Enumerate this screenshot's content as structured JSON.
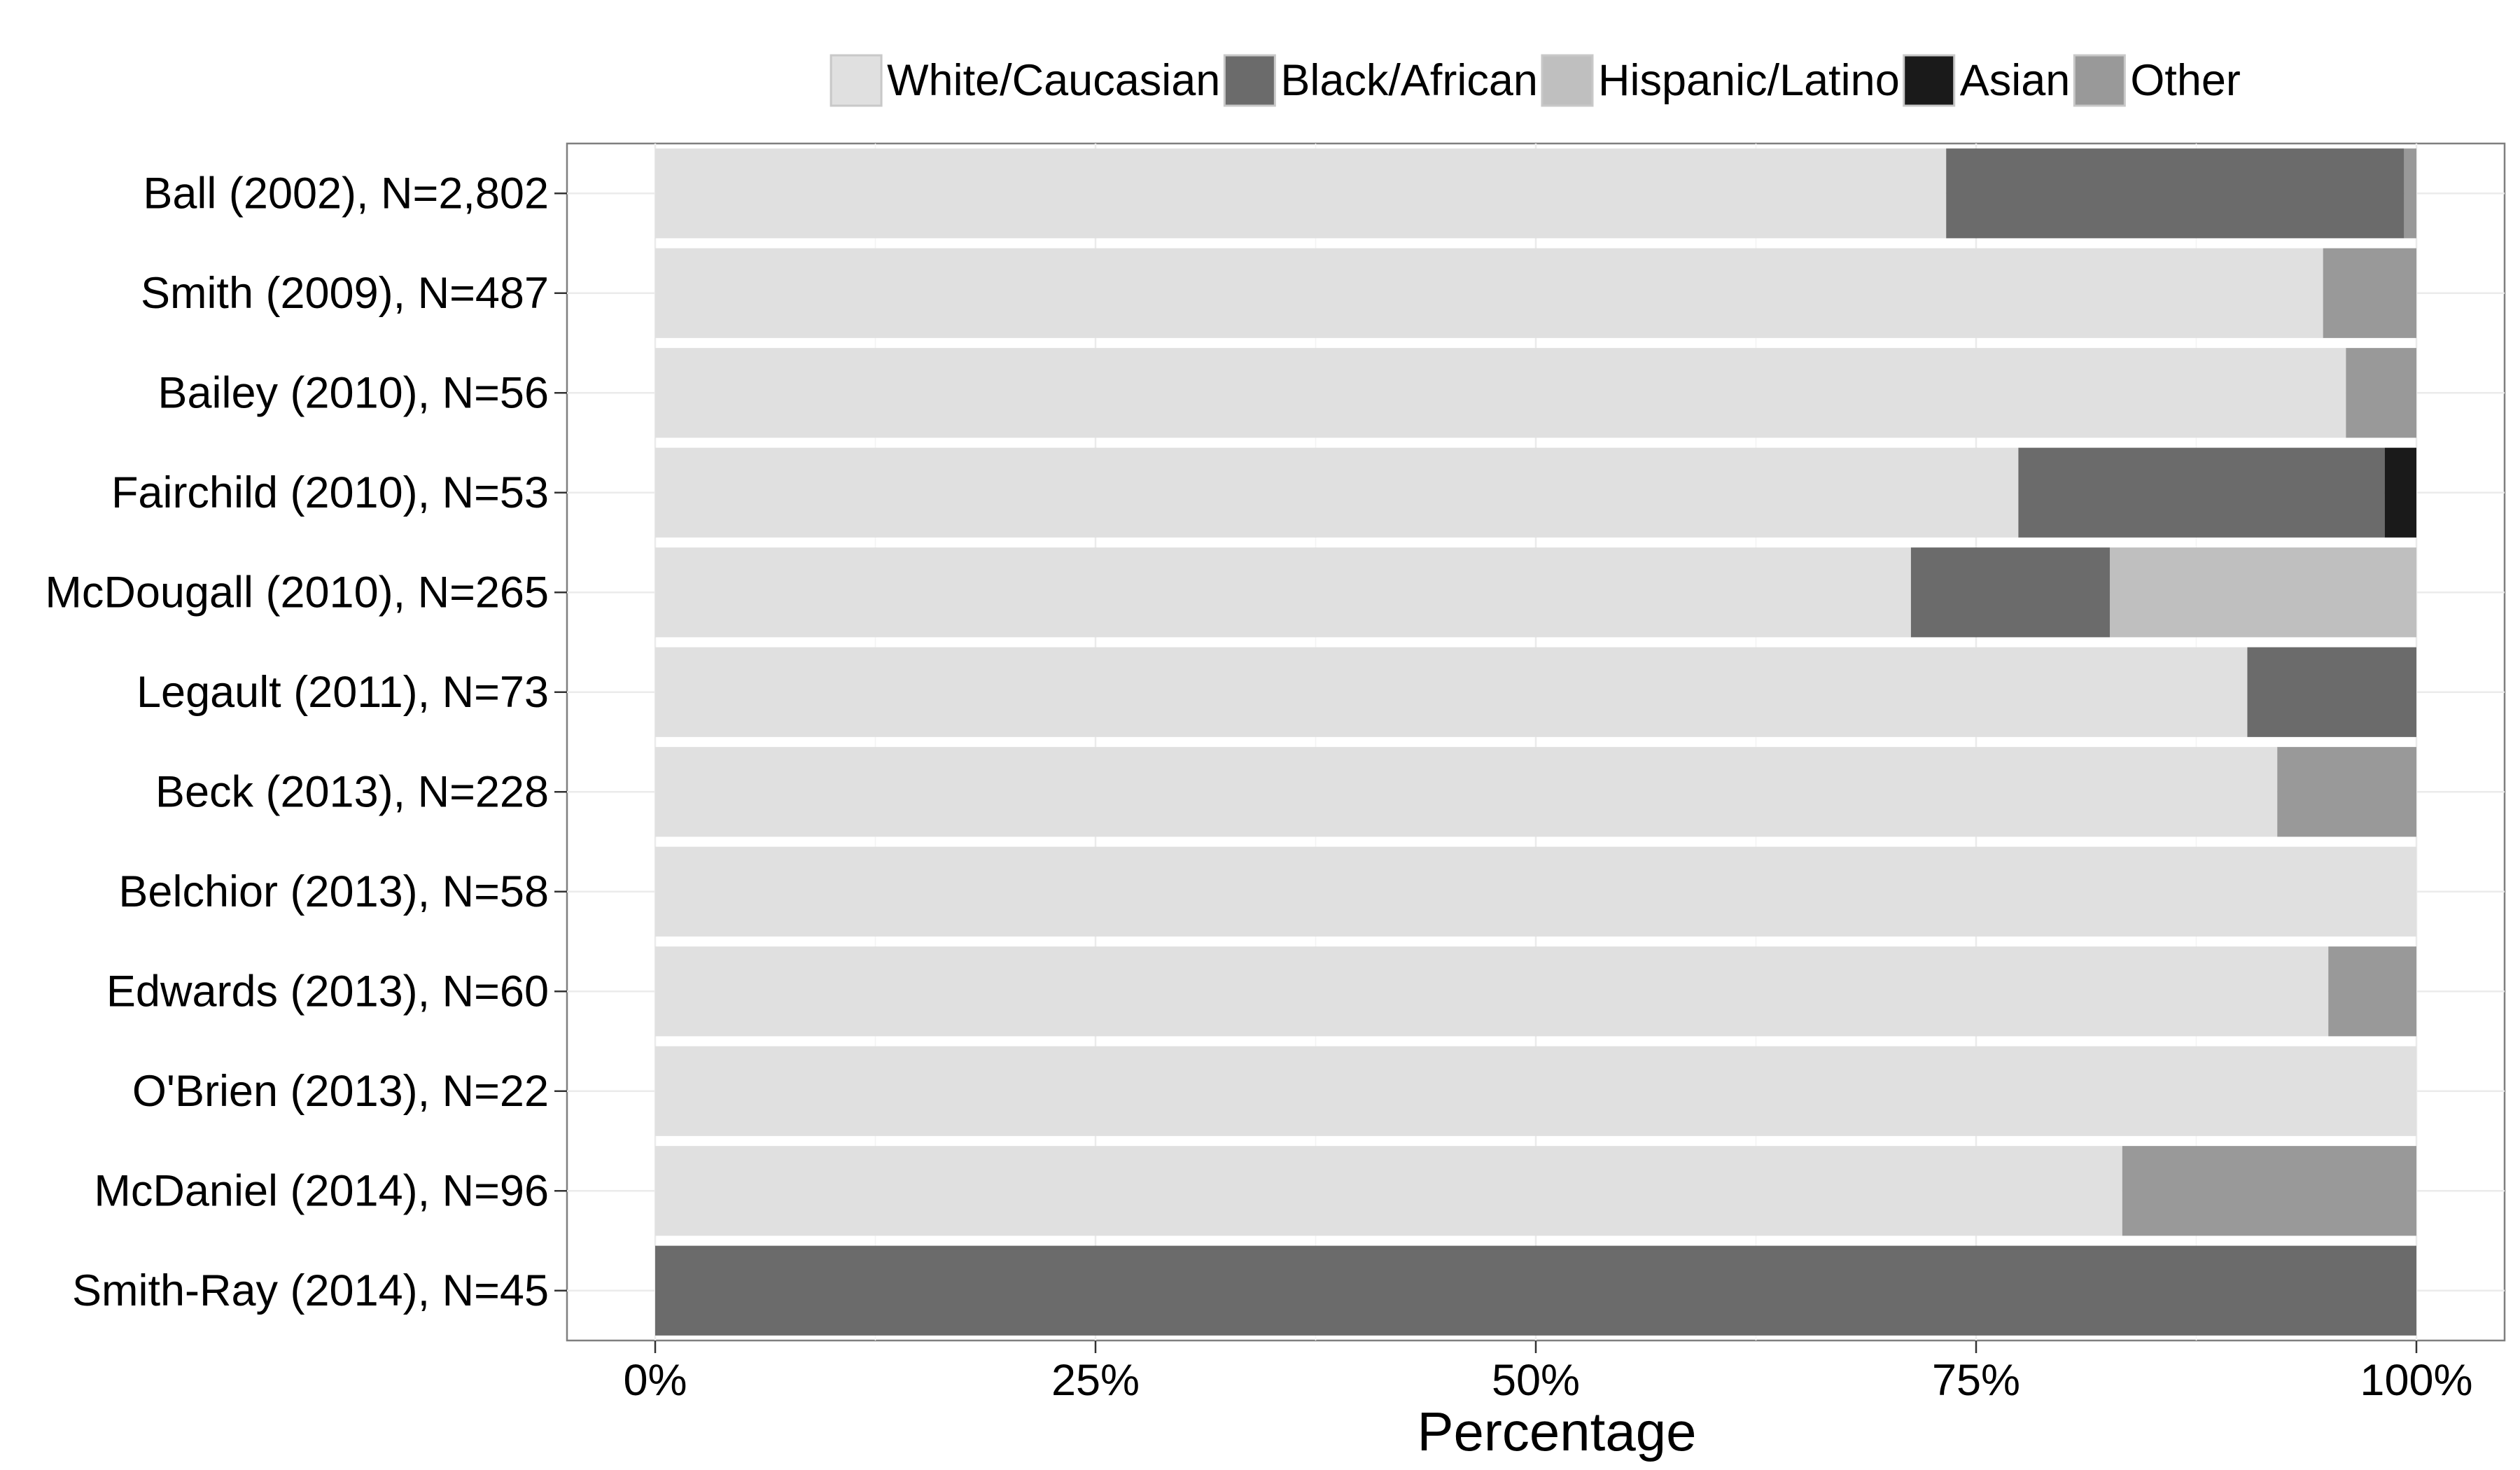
{
  "chart_data": {
    "type": "bar",
    "orientation": "horizontal",
    "stacked": "percent",
    "xlabel": "Percentage",
    "ylabel": "",
    "xlim": [
      0,
      100
    ],
    "x_ticks": [
      "0%",
      "25%",
      "50%",
      "75%",
      "100%"
    ],
    "grid": true,
    "legend_position": "top",
    "categories": [
      "Ball (2002), N=2,802",
      "Smith (2009), N=487",
      "Bailey (2010), N=56",
      "Fairchild (2010), N=53",
      "McDougall (2010), N=265",
      "Legault (2011), N=73",
      "Beck (2013), N=228",
      "Belchior (2013), N=58",
      "Edwards (2013), N=60",
      "O'Brien (2013), N=22",
      "McDaniel (2014), N=96",
      "Smith-Ray (2014), N=45"
    ],
    "series": [
      {
        "name": "White/Caucasian",
        "color": "#e0e0e0",
        "values": [
          73.3,
          94.7,
          96.0,
          77.4,
          71.3,
          90.4,
          92.1,
          100,
          95.0,
          100,
          83.3,
          0
        ]
      },
      {
        "name": "Black/African",
        "color": "#6b6b6b",
        "values": [
          26.0,
          0,
          0,
          20.8,
          11.3,
          9.6,
          0,
          0,
          0,
          0,
          0,
          100
        ]
      },
      {
        "name": "Hispanic/Latino",
        "color": "#bfbfbf",
        "values": [
          0,
          0,
          0,
          0,
          17.4,
          0,
          0,
          0,
          0,
          0,
          0,
          0
        ]
      },
      {
        "name": "Asian",
        "color": "#1a1a1a",
        "values": [
          0,
          0,
          0,
          1.8,
          0,
          0,
          0,
          0,
          0,
          0,
          0,
          0
        ]
      },
      {
        "name": "Other",
        "color": "#999999",
        "values": [
          0.7,
          5.3,
          4.0,
          0,
          0,
          0,
          7.9,
          0,
          5.0,
          0,
          16.7,
          0
        ]
      }
    ]
  }
}
